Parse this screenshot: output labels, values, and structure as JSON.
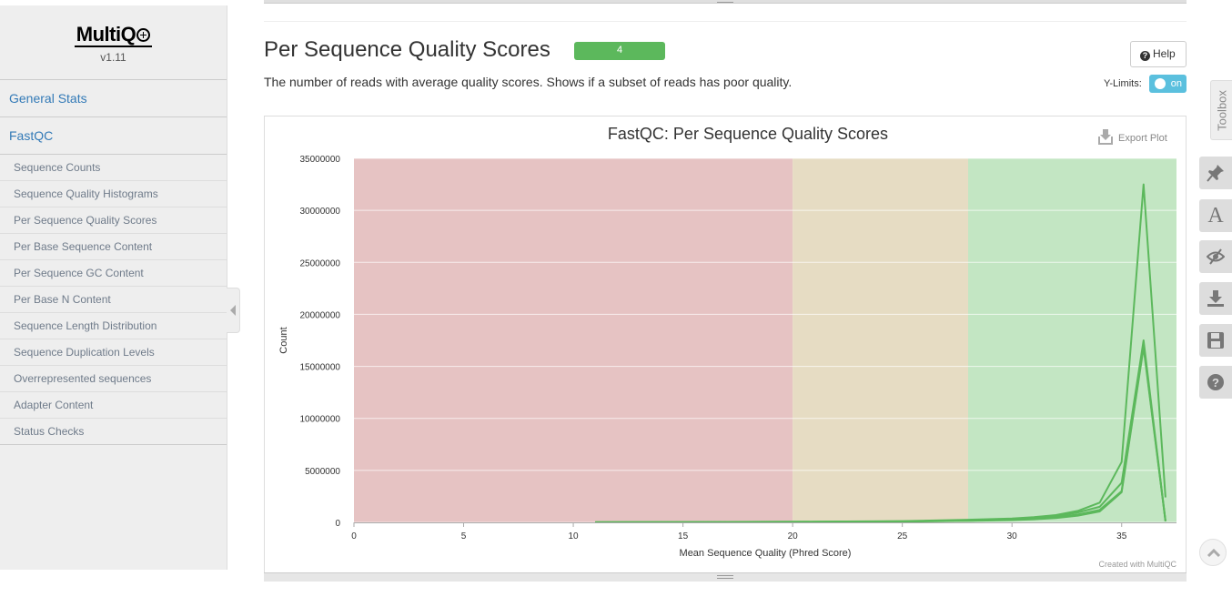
{
  "sidebar": {
    "logo_text": "MultiQC",
    "version": "v1.11",
    "top_items": [
      {
        "label": "General Stats"
      },
      {
        "label": "FastQC"
      }
    ],
    "sub_items": [
      {
        "label": "Sequence Counts"
      },
      {
        "label": "Sequence Quality Histograms"
      },
      {
        "label": "Per Sequence Quality Scores"
      },
      {
        "label": "Per Base Sequence Content"
      },
      {
        "label": "Per Sequence GC Content"
      },
      {
        "label": "Per Base N Content"
      },
      {
        "label": "Sequence Length Distribution"
      },
      {
        "label": "Sequence Duplication Levels"
      },
      {
        "label": "Overrepresented sequences"
      },
      {
        "label": "Adapter Content"
      },
      {
        "label": "Status Checks"
      }
    ]
  },
  "section": {
    "title": "Per Sequence Quality Scores",
    "status_count": "4",
    "description": "The number of reads with average quality scores. Shows if a subset of reads has poor quality.",
    "help_label": "Help",
    "ylimits_label": "Y-Limits:",
    "ylimits_toggle": "on"
  },
  "plot": {
    "export_label": "Export Plot",
    "credit": "Created with MultiQC"
  },
  "toolbox": {
    "tab_label": "Toolbox",
    "buttons": [
      "pin-icon",
      "font-icon",
      "eye-slash-icon",
      "download-icon",
      "save-icon",
      "question-icon"
    ]
  },
  "colors": {
    "accent_link": "#337ab7",
    "status_pass": "#5cb85c",
    "toggle_on": "#5bc0de",
    "band_fail": "#e6c3c3",
    "band_warn": "#e6dcc3",
    "band_pass": "#c3e6c3",
    "series": "#5cb85c"
  },
  "chart_data": {
    "type": "line",
    "title": "FastQC: Per Sequence Quality Scores",
    "xlabel": "Mean Sequence Quality (Phred Score)",
    "ylabel": "Count",
    "xlim": [
      0,
      37.5
    ],
    "ylim": [
      0,
      35000000
    ],
    "x_ticks": [
      "0",
      "5",
      "10",
      "15",
      "20",
      "25",
      "30",
      "35"
    ],
    "y_ticks": [
      "0",
      "5000000",
      "10000000",
      "15000000",
      "20000000",
      "25000000",
      "30000000",
      "35000000"
    ],
    "grid": true,
    "bands": [
      {
        "from": 0,
        "to": 20,
        "status": "fail"
      },
      {
        "from": 20,
        "to": 28,
        "status": "warn"
      },
      {
        "from": 28,
        "to": 37.5,
        "status": "pass"
      }
    ],
    "x": [
      11,
      15,
      20,
      25,
      28,
      30,
      31,
      32,
      33,
      34,
      35,
      36,
      37
    ],
    "series": [
      {
        "values": [
          10000,
          30000,
          60000,
          120000,
          250000,
          380000,
          500000,
          700000,
          1100000,
          1900000,
          5800000,
          32500000,
          2400000
        ]
      },
      {
        "values": [
          8000,
          25000,
          50000,
          100000,
          200000,
          320000,
          430000,
          600000,
          950000,
          1500000,
          3800000,
          17500000,
          100000
        ]
      },
      {
        "values": [
          6000,
          20000,
          40000,
          80000,
          160000,
          260000,
          350000,
          500000,
          750000,
          1200000,
          3000000,
          17000000,
          150000
        ]
      },
      {
        "values": [
          5000,
          18000,
          35000,
          70000,
          140000,
          220000,
          300000,
          420000,
          650000,
          1050000,
          2900000,
          16800000,
          120000
        ]
      }
    ]
  }
}
